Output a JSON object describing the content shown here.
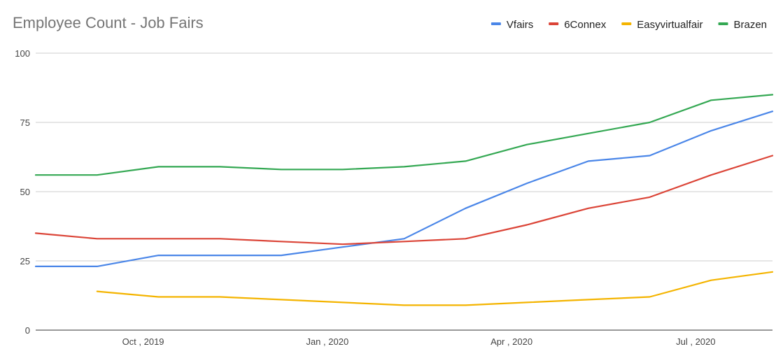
{
  "chart_data": {
    "type": "line",
    "title": "Employee Count - Job Fairs",
    "ylim": [
      0,
      100
    ],
    "yticks": [
      0,
      25,
      50,
      75,
      100
    ],
    "xlim": [
      0,
      12
    ],
    "xticks": [
      {
        "pos": 1.75,
        "label": "Oct , 2019"
      },
      {
        "pos": 4.75,
        "label": "Jan , 2020"
      },
      {
        "pos": 7.75,
        "label": "Apr , 2020"
      },
      {
        "pos": 10.75,
        "label": "Jul , 2020"
      }
    ],
    "legend_position": "top-right",
    "grid": true,
    "x": [
      0,
      1,
      2,
      3,
      4,
      5,
      6,
      7,
      8,
      9,
      10,
      11,
      12
    ],
    "series": [
      {
        "name": "Vfairs",
        "color": "#4a86e8",
        "values": [
          23,
          23,
          27,
          27,
          27,
          30,
          33,
          44,
          53,
          61,
          63,
          72,
          79
        ]
      },
      {
        "name": "6Connex",
        "color": "#db4437",
        "values": [
          35,
          33,
          33,
          33,
          32,
          31,
          32,
          33,
          38,
          44,
          48,
          56,
          63
        ]
      },
      {
        "name": "Easyvirtualfair",
        "color": "#f4b400",
        "values": [
          null,
          14,
          12,
          12,
          11,
          10,
          9,
          9,
          10,
          11,
          12,
          18,
          21
        ]
      },
      {
        "name": "Brazen",
        "color": "#34a853",
        "values": [
          56,
          56,
          59,
          59,
          58,
          58,
          59,
          61,
          67,
          71,
          75,
          83,
          85
        ]
      }
    ]
  }
}
